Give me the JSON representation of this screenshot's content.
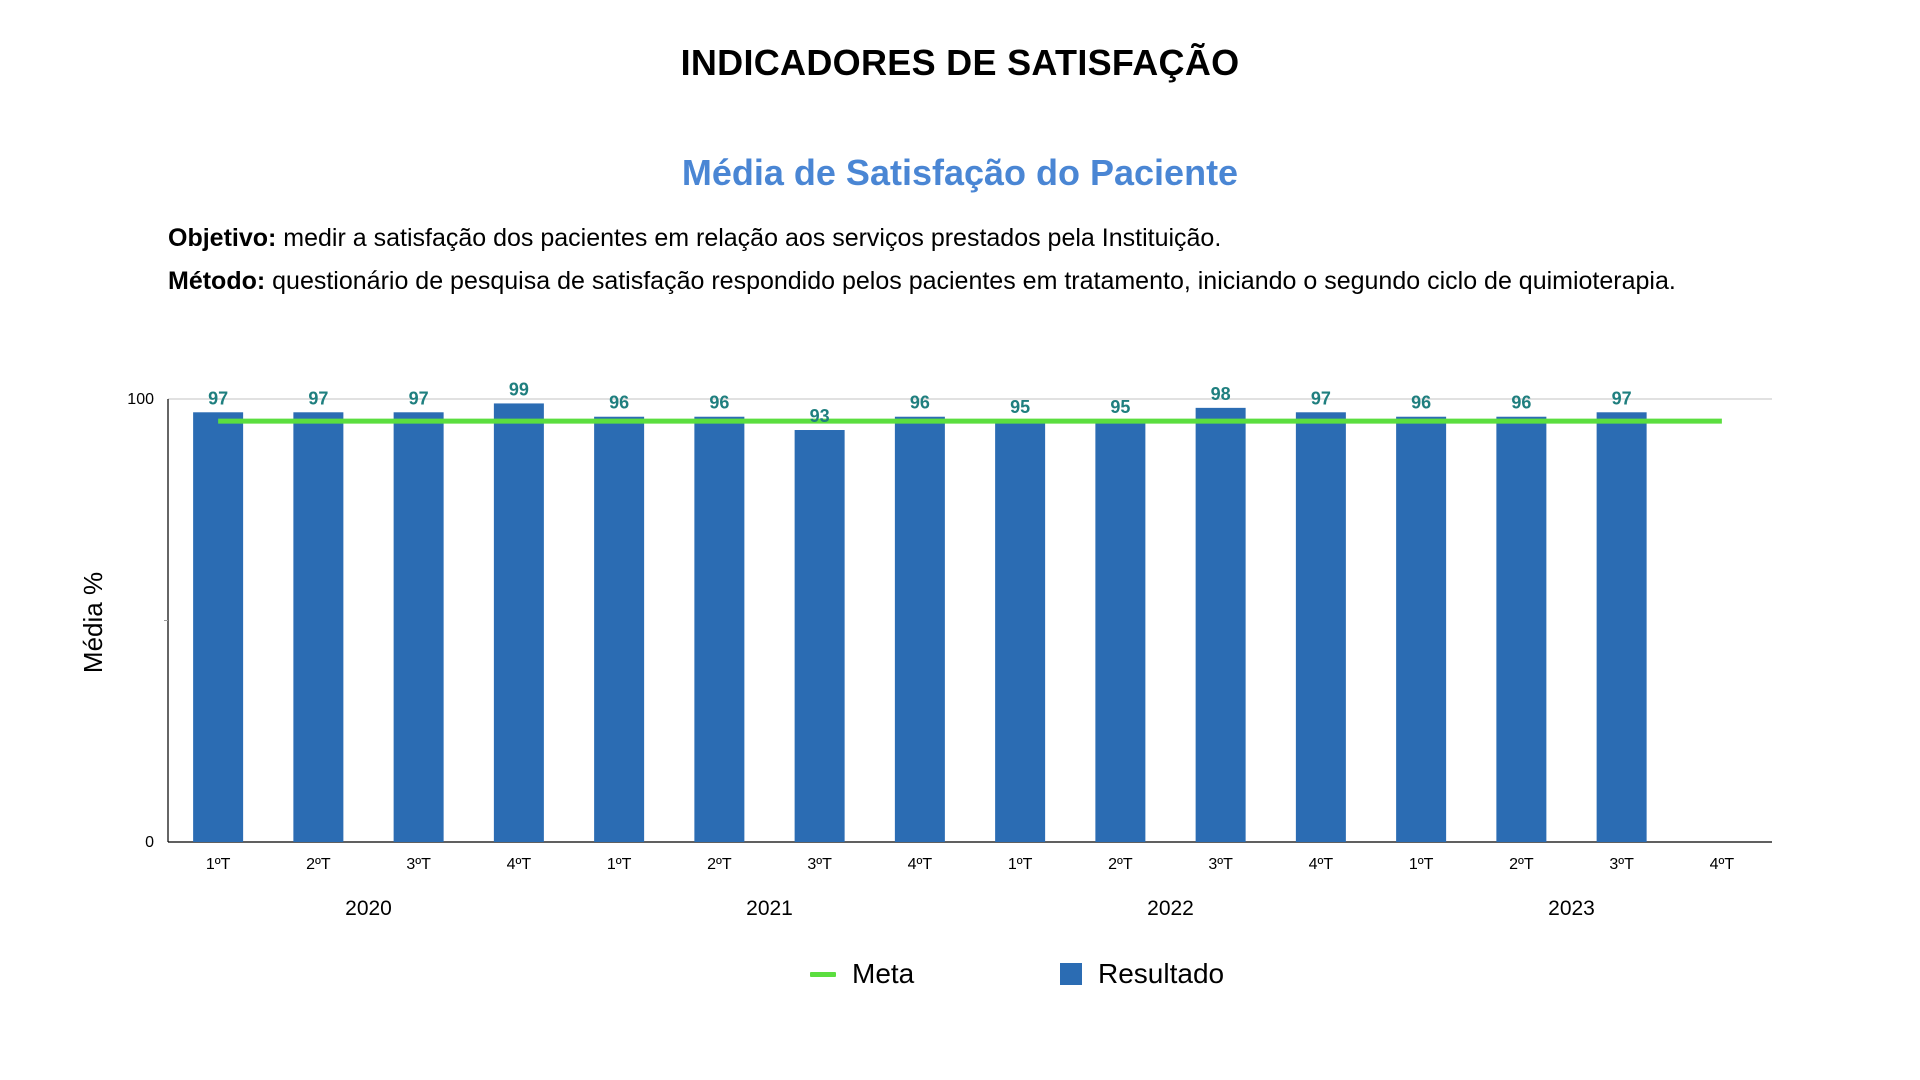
{
  "page_title": "INDICADORES DE SATISFAÇÃO",
  "description": {
    "objetivo_label": "Objetivo:",
    "objetivo_text": " medir a satisfação dos pacientes em relação aos serviços prestados pela Instituição.",
    "metodo_label": "Método:",
    "metodo_text": " questionário de pesquisa de satisfação respondido pelos pacientes em tratamento, iniciando o segundo ciclo de quimioterapia."
  },
  "colors": {
    "bar": "#2b6cb3",
    "meta_line": "#5bde3f",
    "data_label": "#1f7f7f",
    "chart_title": "#4a86d4"
  },
  "chart_data": {
    "type": "bar",
    "title": "Média de Satisfação do Paciente",
    "xlabel": "",
    "ylabel": "Média %",
    "ylim": [
      0,
      100
    ],
    "yticks": [
      "0",
      "100"
    ],
    "categories": [
      "1ºT",
      "2ºT",
      "3ºT",
      "4ºT",
      "1ºT",
      "2ºT",
      "3ºT",
      "4ºT",
      "1ºT",
      "2ºT",
      "3ºT",
      "4ºT",
      "1ºT",
      "2ºT",
      "3ºT",
      "4ºT"
    ],
    "groups": [
      {
        "label": "2020",
        "count": 4
      },
      {
        "label": "2021",
        "count": 4
      },
      {
        "label": "2022",
        "count": 4
      },
      {
        "label": "2023",
        "count": 4
      }
    ],
    "series": [
      {
        "name": "Resultado",
        "type": "bar",
        "values": [
          97,
          97,
          97,
          99,
          96,
          96,
          93,
          96,
          95,
          95,
          98,
          97,
          96,
          96,
          97,
          null
        ]
      },
      {
        "name": "Meta",
        "type": "line",
        "value": 95
      }
    ],
    "grid": true,
    "legend": "bottom-center"
  }
}
